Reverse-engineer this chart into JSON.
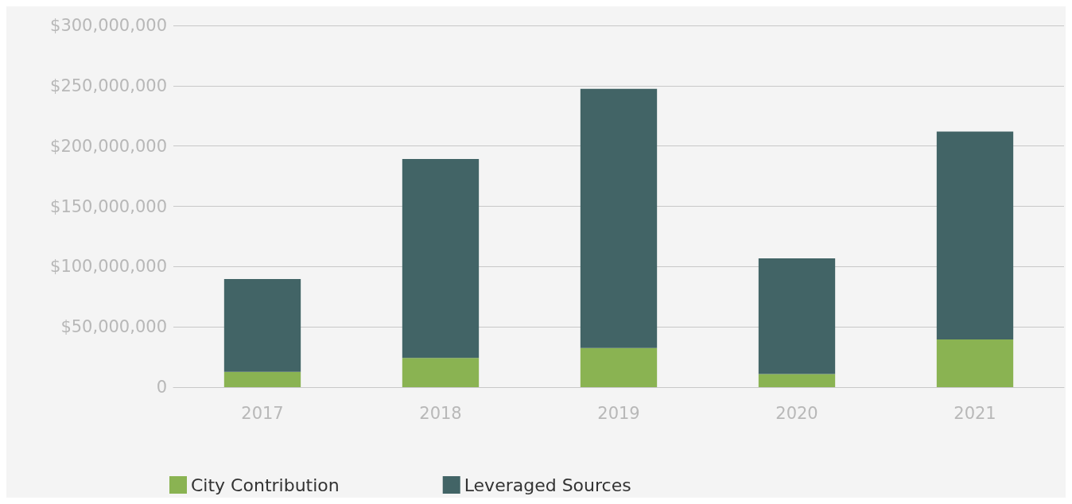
{
  "chart_data": {
    "type": "bar",
    "stacked": true,
    "categories": [
      "2017",
      "2018",
      "2019",
      "2020",
      "2021"
    ],
    "series": [
      {
        "name": "City Contribution",
        "color": "#8ab352",
        "values": [
          12700000,
          24200000,
          32500000,
          10800000,
          39500000
        ]
      },
      {
        "name": "Leveraged Sources",
        "color": "#426466",
        "values": [
          77000000,
          165000000,
          215000000,
          96000000,
          172500000
        ]
      }
    ],
    "ylim": [
      0,
      300000000
    ],
    "yticks": [
      {
        "value": 0,
        "label": "0"
      },
      {
        "value": 50000000,
        "label": "$50,000,000"
      },
      {
        "value": 100000000,
        "label": "$100,000,000"
      },
      {
        "value": 150000000,
        "label": "$150,000,000"
      },
      {
        "value": 200000000,
        "label": "$200,000,000"
      },
      {
        "value": 250000000,
        "label": "$250,000,000"
      },
      {
        "value": 300000000,
        "label": "$300,000,000"
      }
    ],
    "grid": "y",
    "legend": "bottom left"
  }
}
